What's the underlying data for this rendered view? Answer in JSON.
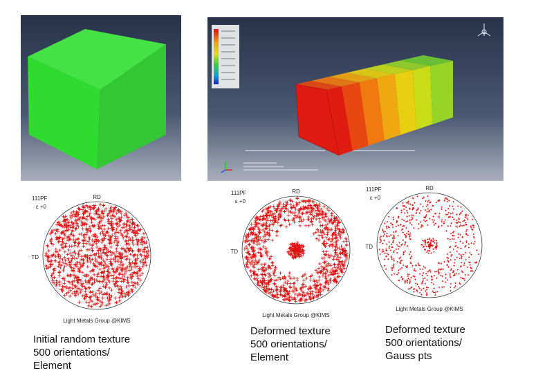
{
  "panels": [
    {
      "plot": "111PF",
      "strain": "ε +0",
      "rd": "RD",
      "td": "TD",
      "credit": "Light Metals Group @KIMS",
      "caption": [
        "Initial random texture",
        "500 orientations/",
        "Element"
      ]
    },
    {
      "plot": "111PF",
      "strain": "ε +0",
      "rd": "RD",
      "td": "TD",
      "credit": "Light Metals Group @KIMS",
      "caption": [
        "Deformed texture",
        "500 orientations/",
        "Element"
      ]
    },
    {
      "plot": "111PF",
      "strain": "ε +0",
      "rd": "RD",
      "td": "TD",
      "credit": "Light Metals Group @KIMS",
      "caption": [
        "Deformed texture",
        "500 orientations/",
        "Gauss pts"
      ]
    }
  ]
}
